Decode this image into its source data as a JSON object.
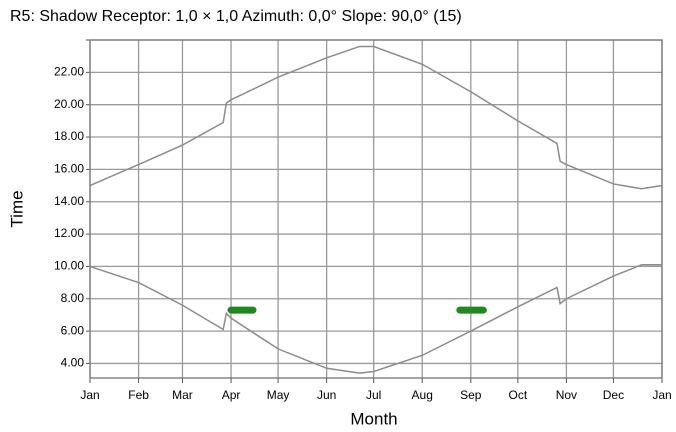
{
  "chart_data": {
    "type": "line",
    "title": "R5: Shadow  Receptor: 1,0 × 1,0  Azimuth: 0,0°  Slope: 90,0° (15)",
    "xlabel": "Month",
    "ylabel": "Time",
    "xlim": [
      0,
      365
    ],
    "xticks": [
      {
        "value": 0,
        "label": "Jan"
      },
      {
        "value": 31,
        "label": "Feb"
      },
      {
        "value": 59,
        "label": "Mar"
      },
      {
        "value": 90,
        "label": "Apr"
      },
      {
        "value": 120,
        "label": "May"
      },
      {
        "value": 151,
        "label": "Jun"
      },
      {
        "value": 181,
        "label": "Jul"
      },
      {
        "value": 212,
        "label": "Aug"
      },
      {
        "value": 243,
        "label": "Sep"
      },
      {
        "value": 273,
        "label": "Oct"
      },
      {
        "value": 304,
        "label": "Nov"
      },
      {
        "value": 334,
        "label": "Dec"
      },
      {
        "value": 365,
        "label": "Jan"
      }
    ],
    "ylim": [
      3.1,
      24
    ],
    "yticks": [
      {
        "value": 4,
        "label": "4.00"
      },
      {
        "value": 6,
        "label": "6.00"
      },
      {
        "value": 8,
        "label": "8.00"
      },
      {
        "value": 10,
        "label": "10.00"
      },
      {
        "value": 12,
        "label": "12.00"
      },
      {
        "value": 14,
        "label": "14.00"
      },
      {
        "value": 16,
        "label": "16.00"
      },
      {
        "value": 18,
        "label": "18.00"
      },
      {
        "value": 20,
        "label": "20.00"
      },
      {
        "value": 22,
        "label": "22.00"
      },
      24
    ],
    "grid": true,
    "x": [
      0,
      31,
      59,
      85,
      87,
      90,
      120,
      151,
      172,
      181,
      212,
      243,
      273,
      298,
      300,
      304,
      334,
      352,
      365
    ],
    "series": [
      {
        "color": "#8c8c8c",
        "values": [
          15.0,
          16.3,
          17.5,
          18.9,
          20.1,
          20.3,
          21.7,
          22.9,
          23.6,
          23.6,
          22.5,
          20.8,
          19.0,
          17.6,
          16.5,
          16.3,
          15.1,
          14.8,
          15.0
        ]
      },
      {
        "color": "#8c8c8c",
        "values": [
          10.0,
          9.0,
          7.6,
          6.1,
          7.1,
          6.8,
          4.9,
          3.7,
          3.4,
          3.5,
          4.5,
          6.0,
          7.5,
          8.7,
          7.7,
          8.0,
          9.4,
          10.1,
          10.1
        ]
      }
    ],
    "shadow_color": "#1e8a1e",
    "shadow_periods": [
      {
        "x": [
          90,
          104
        ],
        "y": 7.3
      },
      {
        "x": [
          236,
          251
        ],
        "y": 7.3
      }
    ]
  }
}
